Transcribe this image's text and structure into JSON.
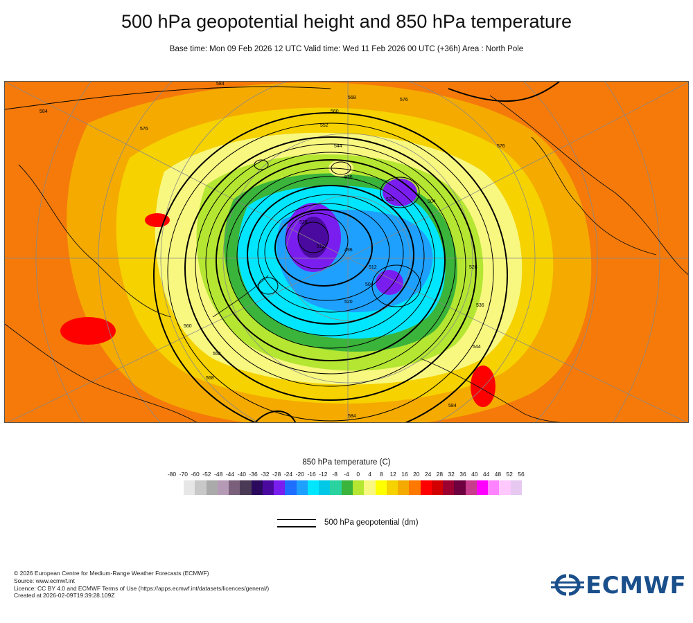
{
  "title": "500 hPa geopotential height and 850 hPa temperature",
  "subtitle": "Base time: Mon 09 Feb 2026 12 UTC Valid time: Wed 11 Feb 2026 00 UTC (+36h) Area : North Pole",
  "map": {
    "contour_labels": [
      "584",
      "584",
      "576",
      "568",
      "560",
      "552",
      "544",
      "536",
      "528",
      "520",
      "512",
      "504",
      "496",
      "504",
      "512",
      "520",
      "528",
      "536",
      "544",
      "552",
      "560",
      "568",
      "576",
      "584",
      "584",
      "576"
    ]
  },
  "legend": {
    "temperature_title": "850 hPa temperature (C)",
    "ticks": [
      "-80",
      "-70",
      "-60",
      "-52",
      "-48",
      "-44",
      "-40",
      "-36",
      "-32",
      "-28",
      "-24",
      "-20",
      "-16",
      "-12",
      "-8",
      "-4",
      "0",
      "4",
      "8",
      "12",
      "16",
      "20",
      "24",
      "28",
      "32",
      "36",
      "40",
      "44",
      "48",
      "52",
      "56"
    ],
    "colors": [
      "#e6e6e6",
      "#c8c8c8",
      "#aaaaaa",
      "#b59ab5",
      "#7a607a",
      "#4a3a55",
      "#2b0a5e",
      "#4a0aa0",
      "#7a1ef0",
      "#1e6eff",
      "#1ea0ff",
      "#00e6ff",
      "#00c8e6",
      "#2ad2a0",
      "#3ab43a",
      "#b4e632",
      "#f8f880",
      "#ffff00",
      "#f5d200",
      "#f5aa00",
      "#ff7800",
      "#ff0000",
      "#d20000",
      "#9b0030",
      "#6e0040",
      "#c83c8c",
      "#ff00ff",
      "#ff82ff",
      "#ffc8ff",
      "#e6c8f0",
      "#e6e6e6"
    ],
    "geopotential_label": "500 hPa geopotential (dm)"
  },
  "credits": [
    "© 2026 European Centre for Medium-Range Weather Forecasts (ECMWF)",
    "Source: www.ecmwf.int",
    "Licence: CC BY 4.0 and ECMWF Terms of Use (https://apps.ecmwf.int/datasets/licences/general/)",
    "Created at 2026-02-09T19:39:28.109Z"
  ],
  "logo": {
    "text": "ECMWF",
    "color": "#1a4f8b"
  }
}
